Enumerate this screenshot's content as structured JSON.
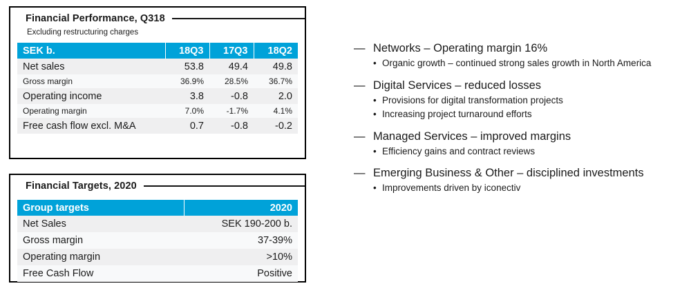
{
  "colors": {
    "accent": "#00A2D9",
    "row_odd": "#EFEFF0",
    "row_even": "#F8F9FA",
    "text": "#1A1A1A"
  },
  "markers": {
    "dash": "—",
    "bullet": "•"
  },
  "performance": {
    "title": "Financial Performance, Q318",
    "subtitle": "Excluding restructuring charges",
    "table": {
      "header": [
        "SEK b.",
        "18Q3",
        "17Q3",
        "18Q2"
      ],
      "rows": [
        {
          "label": "Net sales",
          "values": [
            "53.8",
            "49.4",
            "49.8"
          ]
        },
        {
          "label": "Gross margin",
          "values": [
            "36.9%",
            "28.5%",
            "36.7%"
          ]
        },
        {
          "label": "Operating income",
          "values": [
            "3.8",
            "-0.8",
            "2.0"
          ]
        },
        {
          "label": "Operating margin",
          "values": [
            "7.0%",
            "-1.7%",
            "4.1%"
          ]
        },
        {
          "label": "Free cash flow excl. M&A",
          "values": [
            "0.7",
            "-0.8",
            "-0.2"
          ]
        }
      ]
    }
  },
  "targets": {
    "title": "Financial Targets, 2020",
    "table": {
      "header": [
        "Group targets",
        "2020"
      ],
      "rows": [
        {
          "label": "Net Sales",
          "value": "SEK 190-200 b."
        },
        {
          "label": "Gross margin",
          "value": "37-39%"
        },
        {
          "label": "Operating margin",
          "value": ">10%"
        },
        {
          "label": "Free Cash Flow",
          "value": "Positive"
        }
      ]
    }
  },
  "highlights": [
    {
      "heading": "Networks – Operating margin 16%",
      "subitems": [
        "Organic growth – continued strong sales growth in North America"
      ]
    },
    {
      "heading": "Digital Services – reduced losses",
      "subitems": [
        "Provisions for digital transformation projects",
        "Increasing project turnaround efforts"
      ]
    },
    {
      "heading": "Managed Services – improved margins",
      "subitems": [
        "Efficiency gains and contract reviews"
      ]
    },
    {
      "heading": "Emerging Business & Other – disciplined investments",
      "subitems": [
        "Improvements driven by iconectiv"
      ]
    }
  ]
}
